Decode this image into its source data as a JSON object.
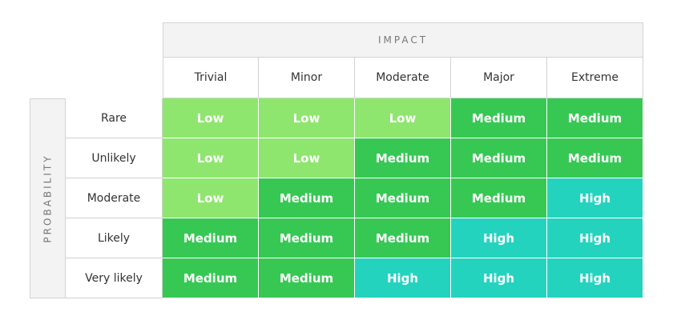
{
  "impact_label": "IMPACT",
  "probability_label": "PROBABILITY",
  "impact_levels": [
    "Trivial",
    "Minor",
    "Moderate",
    "Major",
    "Extreme"
  ],
  "probability_levels": [
    "Rare",
    "Unlikely",
    "Moderate",
    "Likely",
    "Very likely"
  ],
  "ratings": [
    [
      "Low",
      "Low",
      "Low",
      "Medium",
      "Medium"
    ],
    [
      "Low",
      "Low",
      "Medium",
      "Medium",
      "Medium"
    ],
    [
      "Low",
      "Medium",
      "Medium",
      "Medium",
      "High"
    ],
    [
      "Medium",
      "Medium",
      "Medium",
      "High",
      "High"
    ],
    [
      "Medium",
      "Medium",
      "High",
      "High",
      "High"
    ]
  ],
  "colors": {
    "Low": "#8fe66e",
    "Medium": "#37c854",
    "High": "#24d3be",
    "header_background": "#f3f3f3",
    "border": "#d3d3d3"
  }
}
